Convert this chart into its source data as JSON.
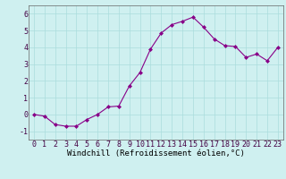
{
  "x": [
    0,
    1,
    2,
    3,
    4,
    5,
    6,
    7,
    8,
    9,
    10,
    11,
    12,
    13,
    14,
    15,
    16,
    17,
    18,
    19,
    20,
    21,
    22,
    23
  ],
  "y": [
    0.0,
    -0.1,
    -0.6,
    -0.7,
    -0.7,
    -0.3,
    0.0,
    0.45,
    0.5,
    1.7,
    2.5,
    3.9,
    4.85,
    5.35,
    5.55,
    5.8,
    5.2,
    4.5,
    4.1,
    4.05,
    3.4,
    3.6,
    3.2,
    4.0
  ],
  "line_color": "#880088",
  "marker": "D",
  "marker_size": 2.0,
  "bg_color": "#cff0f0",
  "grid_color": "#aadddd",
  "xlabel": "Windchill (Refroidissement éolien,°C)",
  "xlim": [
    -0.5,
    23.5
  ],
  "ylim": [
    -1.5,
    6.5
  ],
  "yticks": [
    -1,
    0,
    1,
    2,
    3,
    4,
    5,
    6
  ],
  "xticks": [
    0,
    1,
    2,
    3,
    4,
    5,
    6,
    7,
    8,
    9,
    10,
    11,
    12,
    13,
    14,
    15,
    16,
    17,
    18,
    19,
    20,
    21,
    22,
    23
  ],
  "xtick_labels": [
    "0",
    "1",
    "2",
    "3",
    "4",
    "5",
    "6",
    "7",
    "8",
    "9",
    "10",
    "11",
    "12",
    "13",
    "14",
    "15",
    "16",
    "17",
    "18",
    "19",
    "20",
    "21",
    "22",
    "23"
  ],
  "xlabel_fontsize": 6.5,
  "tick_fontsize": 6.0,
  "line_width": 0.8
}
